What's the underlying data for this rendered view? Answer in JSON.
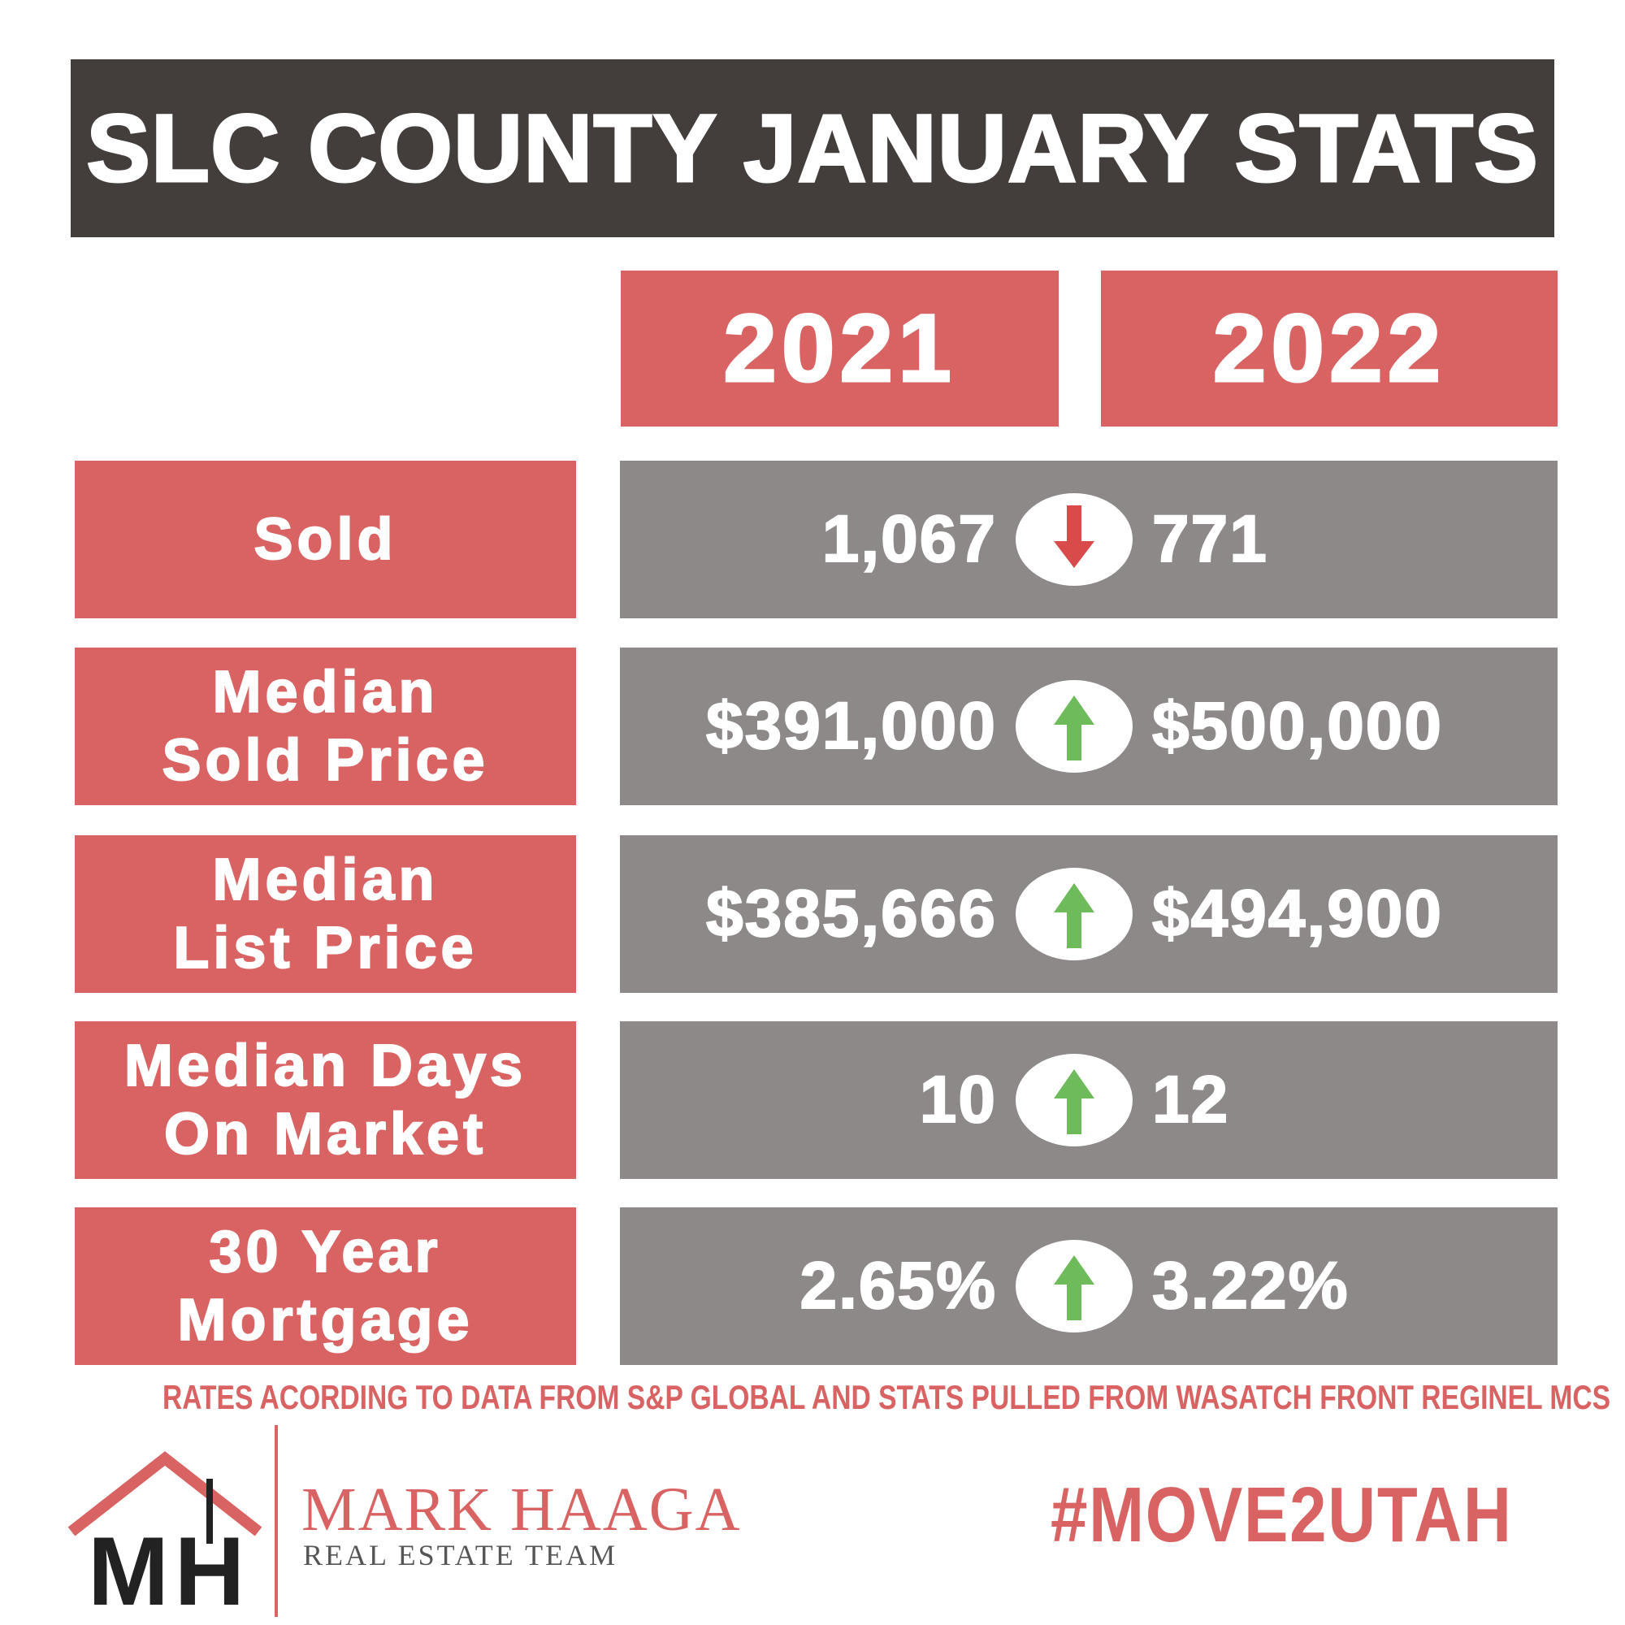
{
  "header": {
    "title": "SLC COUNTY JANUARY STATS"
  },
  "columns": [
    "2021",
    "2022"
  ],
  "rows": [
    {
      "label": [
        "Sold"
      ],
      "values": [
        "1,067",
        "771"
      ],
      "arrow": "down"
    },
    {
      "label": [
        "Median",
        "Sold Price"
      ],
      "values": [
        "$391,000",
        "$500,000"
      ],
      "arrow": "up"
    },
    {
      "label": [
        "Median",
        "List Price"
      ],
      "values": [
        "$385,666",
        "$494,900"
      ],
      "arrow": "up"
    },
    {
      "label": [
        "Median Days",
        "On Market"
      ],
      "values": [
        "10",
        "12"
      ],
      "arrow": "up"
    },
    {
      "label": [
        "30 Year",
        "Mortgage"
      ],
      "values": [
        "2.65%",
        "3.22%"
      ],
      "arrow": "up"
    }
  ],
  "footnote": "RATES ACORDING TO DATA FROM S&P GLOBAL AND STATS PULLED FROM WASATCH FRONT REGINEL MCS",
  "logo": {
    "initials": [
      "M",
      "H"
    ],
    "name": "MARK HAAGA",
    "tagline": "REAL ESTATE TEAM"
  },
  "hashtag": "#MOVE2UTAH"
}
